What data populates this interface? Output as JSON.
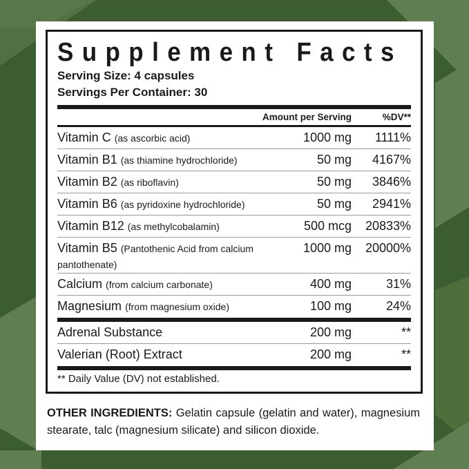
{
  "colors": {
    "background": "#3c5c31",
    "accent_triangles": "#5f7f53",
    "panel": "#ffffff",
    "text": "#1a1a1a"
  },
  "label": {
    "title": "Supplement Facts",
    "serving_size": "Serving Size: 4 capsules",
    "servings_per_container": "Servings Per Container: 30",
    "header": {
      "amount": "Amount per Serving",
      "dv": "%DV**"
    },
    "nutrients": [
      {
        "name": "Vitamin C",
        "detail": "(as ascorbic acid)",
        "amount": "1000 mg",
        "dv": "1111%"
      },
      {
        "name": "Vitamin B1",
        "detail": "(as thiamine hydrochloride)",
        "amount": "50 mg",
        "dv": "4167%"
      },
      {
        "name": "Vitamin B2",
        "detail": "(as riboflavin)",
        "amount": "50 mg",
        "dv": "3846%"
      },
      {
        "name": "Vitamin B6",
        "detail": "(as pyridoxine hydrochloride)",
        "amount": "50 mg",
        "dv": "2941%"
      },
      {
        "name": "Vitamin B12",
        "detail": "(as methylcobalamin)",
        "amount": "500 mcg",
        "dv": "20833%"
      },
      {
        "name": "Vitamin B5",
        "detail": "(Pantothenic Acid from calcium pantothenate)",
        "amount": "1000 mg",
        "dv": "20000%"
      },
      {
        "name": "Calcium",
        "detail": "(from calcium carbonate)",
        "amount": "400 mg",
        "dv": "31%"
      },
      {
        "name": "Magnesium",
        "detail": "(from magnesium oxide)",
        "amount": "100 mg",
        "dv": "24%"
      }
    ],
    "others": [
      {
        "name": "Adrenal Substance",
        "amount": "200 mg",
        "dv": "**"
      },
      {
        "name": "Valerian (Root) Extract",
        "amount": "200 mg",
        "dv": "**"
      }
    ],
    "footnote": "** Daily Value (DV) not established."
  },
  "other_ingredients": {
    "label": "OTHER INGREDIENTS:",
    "text": "Gelatin capsule (gelatin and water), magnesium stearate, talc (magnesium silicate) and silicon dioxide."
  }
}
